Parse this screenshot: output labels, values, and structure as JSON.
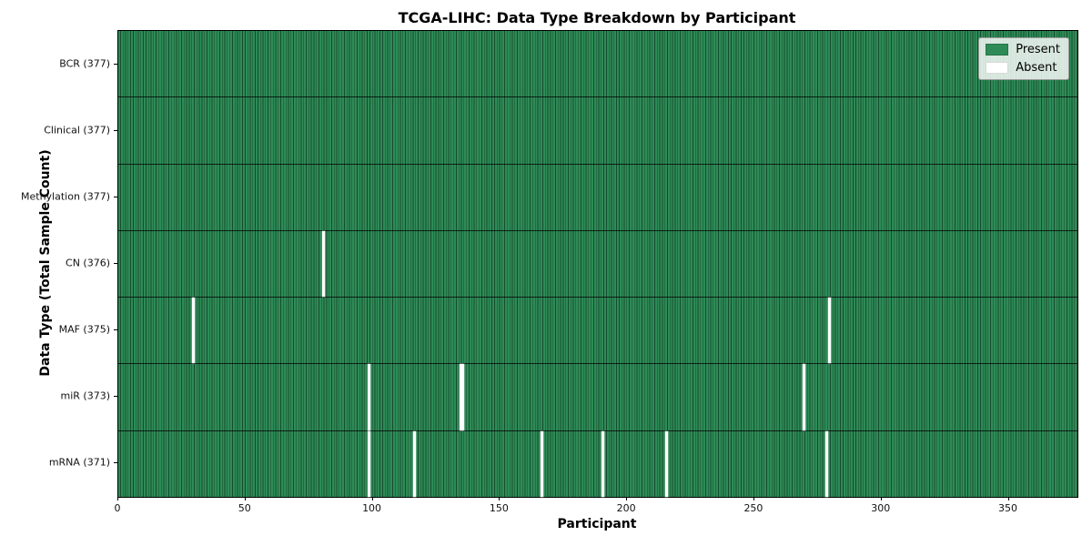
{
  "figure": {
    "title": "TCGA-LIHC: Data Type Breakdown by Participant",
    "xlabel": "Participant",
    "ylabel": "Data Type (Total Sample Count)"
  },
  "legend": {
    "items": [
      {
        "label": "Present",
        "color": "#2e8b57"
      },
      {
        "label": "Absent",
        "color": "#ffffff"
      }
    ]
  },
  "colors": {
    "present": "#2e8b57",
    "absent": "#ffffff",
    "cell_edge": "rgba(0,25,12,0.55)",
    "axis": "#000000",
    "legend_background": "rgba(255,255,255,0.82)"
  },
  "chart_data": {
    "type": "heatmap",
    "title": "TCGA-LIHC: Data Type Breakdown by Participant",
    "xlabel": "Participant",
    "ylabel": "Data Type (Total Sample Count)",
    "xlim": [
      0,
      377
    ],
    "x_ticks": [
      0,
      50,
      100,
      150,
      200,
      250,
      300,
      350
    ],
    "n_participants": 377,
    "legend": [
      "Present",
      "Absent"
    ],
    "grid": false,
    "legend_position": "upper right",
    "rows": [
      {
        "label": "BCR (377)",
        "data_type": "BCR",
        "present_count": 377,
        "absent_participants": []
      },
      {
        "label": "Clinical (377)",
        "data_type": "Clinical",
        "present_count": 377,
        "absent_participants": []
      },
      {
        "label": "Methylation (377)",
        "data_type": "Methylation",
        "present_count": 377,
        "absent_participants": []
      },
      {
        "label": "CN (376)",
        "data_type": "CN",
        "present_count": 376,
        "absent_participants": [
          80
        ]
      },
      {
        "label": "MAF (375)",
        "data_type": "MAF",
        "present_count": 375,
        "absent_participants": [
          29,
          279
        ]
      },
      {
        "label": "miR (373)",
        "data_type": "miR",
        "present_count": 373,
        "absent_participants": [
          98,
          134,
          135,
          269
        ]
      },
      {
        "label": "mRNA (371)",
        "data_type": "mRNA",
        "present_count": 371,
        "absent_participants": [
          98,
          116,
          166,
          190,
          215,
          278
        ]
      }
    ]
  }
}
